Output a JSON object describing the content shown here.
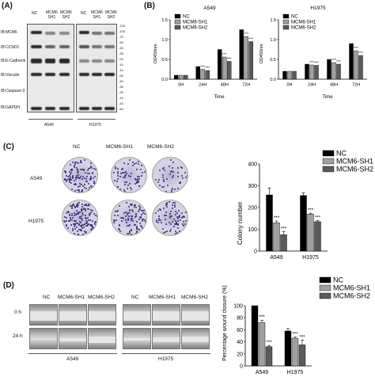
{
  "panels": {
    "A": "(A)",
    "B": "(B)",
    "C": "(C)",
    "D": "(D)"
  },
  "panelA": {
    "lanes_a549": [
      "NC",
      "MCM6\nSH1",
      "MCM6\nSH2"
    ],
    "lanes_h1975": [
      "NC",
      "MCM6\nSH1",
      "MCM6\nSH2"
    ],
    "rows": [
      "IB:MCM6",
      "IB:CCND1",
      "IB:E-Cadherin",
      "IB:Vinculin",
      "IB:Caspase-3",
      "IB:GAPDH"
    ],
    "mw_markers": [
      "-130",
      "-100",
      "-70",
      "-55",
      "-40",
      "-35",
      "-25",
      "-15",
      "-10",
      "-55",
      "-40",
      "-35",
      "-25",
      "-15",
      "-10",
      "-40"
    ],
    "cell_labels": [
      "A549",
      "H1975"
    ]
  },
  "chart_data": [
    {
      "type": "bar",
      "title": "A549",
      "categories": [
        "0H",
        "24H",
        "48H",
        "72H"
      ],
      "xlabel": "Time",
      "ylabel": "OD450nm",
      "ylim": [
        0,
        1.5
      ],
      "yticks": [
        "0.0",
        "0.5",
        "1.0",
        "1.5"
      ],
      "series": [
        {
          "name": "NC",
          "values": [
            0.1,
            0.32,
            0.75,
            1.25
          ]
        },
        {
          "name": "MCM6-SH1",
          "values": [
            0.1,
            0.25,
            0.56,
            1.08
          ]
        },
        {
          "name": "MCM6-SH2",
          "values": [
            0.1,
            0.22,
            0.45,
            0.95
          ]
        }
      ],
      "sig": [
        "",
        "***",
        "***",
        "***"
      ],
      "legend": "top-left"
    },
    {
      "type": "bar",
      "title": "H1975",
      "categories": [
        "0H",
        "24H",
        "48H",
        "72H"
      ],
      "xlabel": "Time",
      "ylabel": "OD450nm",
      "ylim": [
        0,
        1.5
      ],
      "yticks": [
        "0.0",
        "0.5",
        "1.0",
        "1.5"
      ],
      "series": [
        {
          "name": "NC",
          "values": [
            0.2,
            0.38,
            0.5,
            0.9
          ]
        },
        {
          "name": "MCM6-SH1",
          "values": [
            0.2,
            0.36,
            0.42,
            0.72
          ]
        },
        {
          "name": "MCM6-SH2",
          "values": [
            0.2,
            0.35,
            0.38,
            0.6
          ]
        }
      ],
      "sig": [
        "",
        "***",
        "***",
        "***"
      ],
      "legend": "top-left"
    },
    {
      "type": "bar",
      "categories": [
        "A549",
        "H1975"
      ],
      "ylabel": "Colony number",
      "ylim": [
        0,
        400
      ],
      "yticks": [
        "0",
        "100",
        "200",
        "300",
        "400"
      ],
      "series": [
        {
          "name": "NC",
          "values": [
            258,
            255
          ]
        },
        {
          "name": "MCM6-SH1",
          "values": [
            130,
            170
          ]
        },
        {
          "name": "MCM6-SH2",
          "values": [
            75,
            135
          ]
        }
      ],
      "errors": [
        [
          32,
          12
        ],
        [
          8,
          4
        ],
        [
          15,
          5
        ]
      ],
      "sig": [
        "***",
        "***"
      ],
      "legend": "top-right"
    },
    {
      "type": "bar",
      "categories": [
        "A549",
        "H1975"
      ],
      "ylabel": "Percentage wound closure (%)",
      "ylim": [
        0,
        100
      ],
      "yticks": [
        "0",
        "20",
        "40",
        "60",
        "80",
        "100"
      ],
      "series": [
        {
          "name": "NC",
          "values": [
            100,
            58
          ]
        },
        {
          "name": "MCM6-SH1",
          "values": [
            72,
            46
          ]
        },
        {
          "name": "MCM6-SH2",
          "values": [
            32,
            35
          ]
        }
      ],
      "errors": [
        [
          0,
          4
        ],
        [
          4,
          2
        ],
        [
          2,
          8
        ]
      ],
      "sig": [
        "***",
        "***"
      ],
      "legend": "top-right"
    }
  ],
  "panelC": {
    "col_labels": [
      "NC",
      "MCM6-SH1",
      "MCM6-SH2"
    ],
    "row_labels": [
      "A549",
      "H1975"
    ]
  },
  "panelD": {
    "col_labels_a": [
      "NC",
      "MCM6-SH1",
      "MCM6-SH2"
    ],
    "col_labels_b": [
      "NC",
      "MCM6-SH1",
      "MCM6-SH2"
    ],
    "row_labels": [
      "0 h",
      "24 h"
    ],
    "cell_labels": [
      "A549",
      "H1975"
    ]
  },
  "colors": {
    "NC": "#000000",
    "MCM6-SH1": "#a0a0a0",
    "MCM6-SH2": "#5a5a5a",
    "stain": "#3a2f7a"
  }
}
